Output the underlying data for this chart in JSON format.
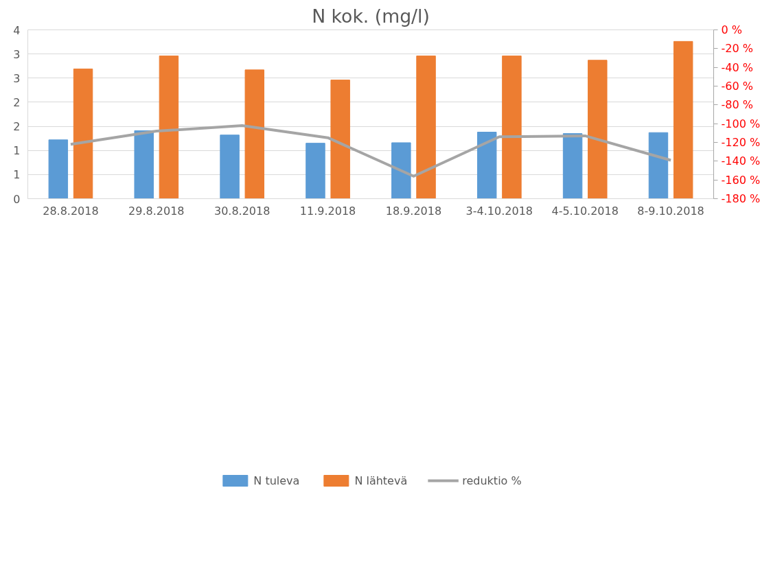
{
  "chart_data": {
    "type": "bar",
    "title": "N kok. (mg/l)",
    "categories": [
      "28.8.2018",
      "29.8.2018",
      "30.8.2018",
      "11.9.2018",
      "18.9.2018",
      "3-4.10.2018",
      "4-5.10.2018",
      "8-9.10.2018"
    ],
    "series": [
      {
        "name": "N tuleva",
        "color": "#5b9bd5",
        "values": [
          1.22,
          1.41,
          1.32,
          1.15,
          1.16,
          1.38,
          1.35,
          1.37
        ]
      },
      {
        "name": "N lähtevä",
        "color": "#ed7d31",
        "values": [
          2.69,
          2.96,
          2.67,
          2.46,
          2.96,
          2.96,
          2.87,
          3.26
        ]
      },
      {
        "name": "reduktio %",
        "type": "line",
        "axis": "y2",
        "color": "#a5a5a5",
        "values": [
          -122,
          -108,
          -102,
          -115,
          -156,
          -114,
          -113,
          -139
        ]
      }
    ],
    "ylim": [
      0,
      3.5
    ],
    "yticks": [
      {
        "value": 0,
        "label": "0"
      },
      {
        "value": 0.5,
        "label": "1"
      },
      {
        "value": 1,
        "label": "1"
      },
      {
        "value": 1.5,
        "label": "2"
      },
      {
        "value": 2,
        "label": "2"
      },
      {
        "value": 2.5,
        "label": "3"
      },
      {
        "value": 3,
        "label": "3"
      },
      {
        "value": 3.5,
        "label": "4"
      }
    ],
    "y2lim": [
      -180,
      0
    ],
    "y2ticks": [
      {
        "value": -180,
        "label": "-180 %"
      },
      {
        "value": -160,
        "label": "-160 %"
      },
      {
        "value": -140,
        "label": "-140 %"
      },
      {
        "value": -120,
        "label": "-120 %"
      },
      {
        "value": -100,
        "label": "-100 %"
      },
      {
        "value": -80,
        "label": "-80 %"
      },
      {
        "value": -60,
        "label": "-60 %"
      },
      {
        "value": -40,
        "label": "-40 %"
      },
      {
        "value": -20,
        "label": "-20 %"
      },
      {
        "value": 0,
        "label": "0 %"
      }
    ],
    "grid": "y",
    "legend": "bottom"
  }
}
